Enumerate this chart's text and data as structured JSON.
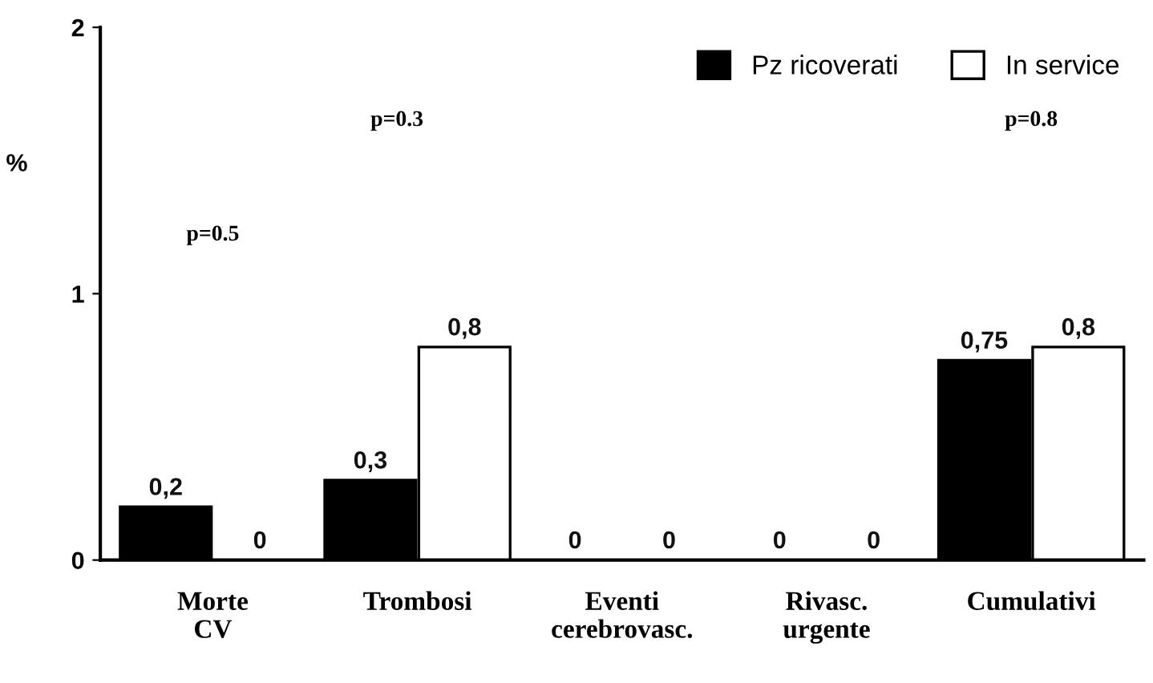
{
  "chart_data": {
    "type": "bar",
    "ylabel": "%",
    "categories": [
      "Morte\nCV",
      "Trombosi",
      "Eventi\ncerebrovasc.",
      "Rivasc.\nurgente",
      "Cumulativi"
    ],
    "series": [
      {
        "name": "Pz ricoverati",
        "color": "#000000",
        "values": [
          0.2,
          0.3,
          0,
          0,
          0.75
        ],
        "value_labels": [
          "0,2",
          "0,3",
          "0",
          "0",
          "0,75"
        ]
      },
      {
        "name": "In service",
        "color": "#ffffff",
        "values": [
          0,
          0.8,
          0,
          0,
          0.8
        ],
        "value_labels": [
          "0",
          "0,8",
          "0",
          "0",
          "0,8"
        ]
      }
    ],
    "ylim": [
      0,
      2
    ],
    "yticks": [
      0,
      1,
      2
    ],
    "grid": false,
    "legend": "top right",
    "annotations": [
      "p=0.5",
      "p=0.3",
      "p=0.8"
    ]
  }
}
